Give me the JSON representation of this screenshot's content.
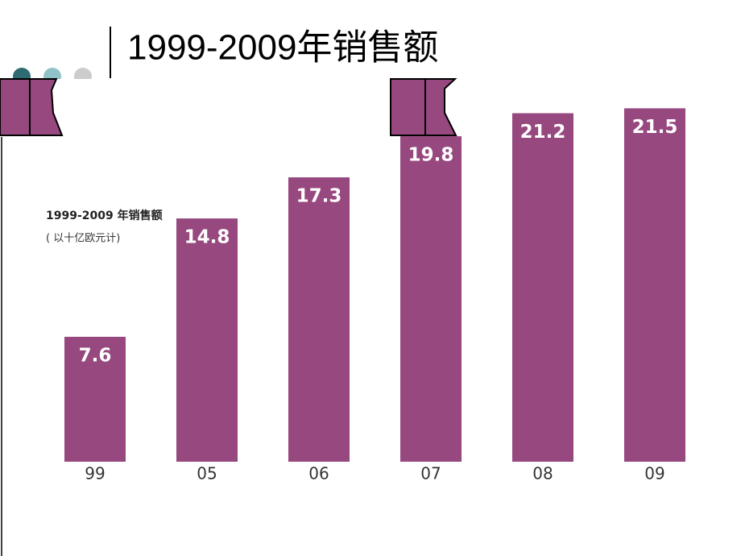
{
  "title": "1999-2009年销售额",
  "chart_data": {
    "type": "bar",
    "title": "1999-2009 年销售额",
    "subtitle": "( 以十亿欧元计)",
    "categories": [
      "99",
      "05",
      "06",
      "07",
      "08",
      "09"
    ],
    "values": [
      7.6,
      14.8,
      17.3,
      19.8,
      21.2,
      21.5
    ],
    "color": "#96487f"
  }
}
